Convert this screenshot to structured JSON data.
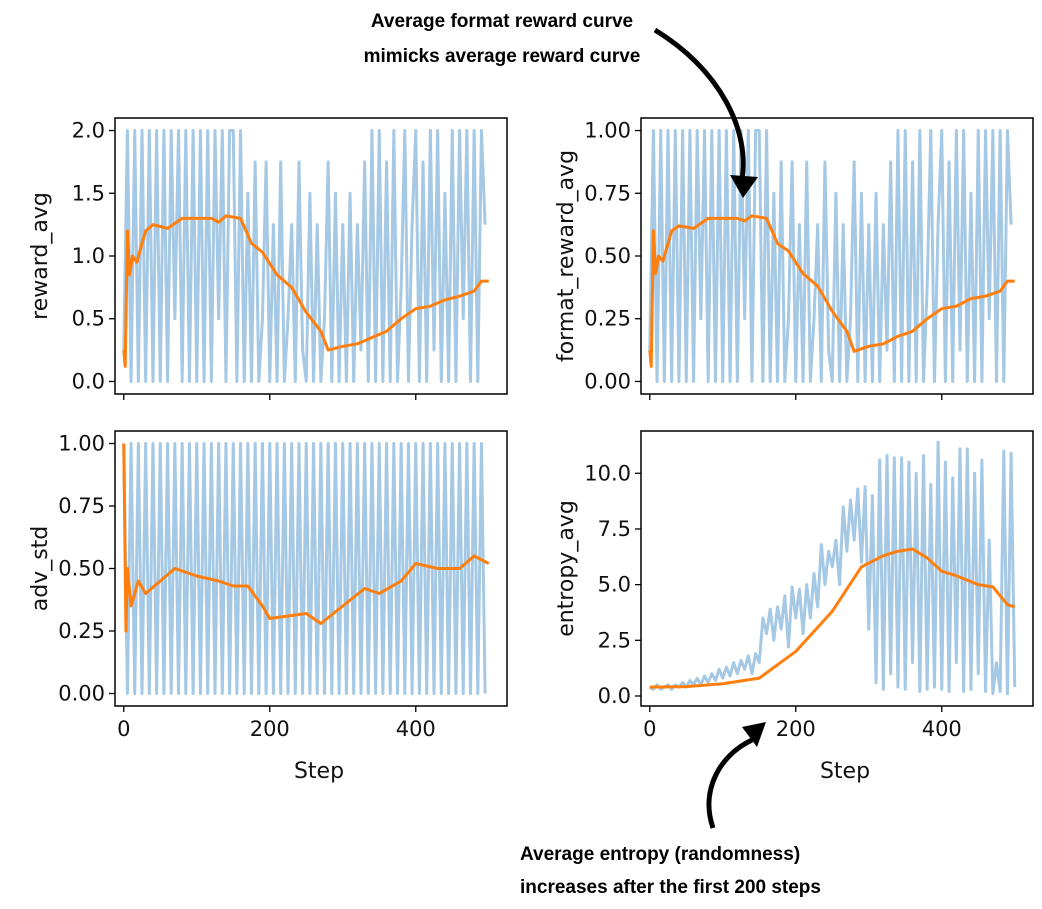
{
  "colors": {
    "raw": "#7fb1d8",
    "smoothed": "#ff7f0e",
    "arrow": "#000000"
  },
  "annotations": {
    "top": [
      "Average format reward curve",
      "mimicks average reward curve"
    ],
    "bottom": [
      "Average entropy (randomness)",
      "increases after the first 200 steps"
    ]
  },
  "chart_data": [
    {
      "type": "line",
      "position": "top-left",
      "xlabel": "",
      "ylabel": "reward_avg",
      "xlim": [
        -12,
        525
      ],
      "ylim": [
        -0.1,
        2.1
      ],
      "xticks": [
        0,
        200,
        400
      ],
      "show_xticklabels": false,
      "yticks": [
        "0.0",
        "0.5",
        "1.0",
        "1.5",
        "2.0"
      ],
      "grid": false,
      "raw_step": 5,
      "raw": [
        0.25,
        2,
        0,
        2,
        0,
        2,
        0,
        2,
        0,
        2,
        0,
        2,
        0,
        2,
        0.5,
        2,
        0,
        2,
        0,
        2,
        0,
        2,
        0,
        2,
        0,
        2,
        0.5,
        2,
        0,
        2,
        2,
        0,
        2,
        0,
        1.5,
        0,
        1.75,
        0,
        0.5,
        1.75,
        0,
        1.25,
        0,
        1.75,
        0,
        0.5,
        1.25,
        0,
        1.75,
        0.25,
        0,
        1.5,
        0,
        1.25,
        0,
        0.5,
        1.75,
        0,
        1.5,
        0,
        1.25,
        0,
        1.5,
        0,
        1.25,
        0.25,
        1.75,
        0,
        2,
        0,
        2,
        0,
        1.75,
        0,
        2,
        0,
        0.75,
        2,
        0,
        1.25,
        2,
        0,
        1.75,
        0,
        2,
        0.25,
        2,
        0,
        1.5,
        0,
        2,
        0,
        2,
        0.5,
        2,
        0,
        2,
        0,
        2,
        1.25
      ],
      "smoothed": [
        [
          0,
          0.25
        ],
        [
          2,
          0.12
        ],
        [
          5,
          1.2
        ],
        [
          8,
          0.85
        ],
        [
          12,
          1.0
        ],
        [
          18,
          0.95
        ],
        [
          25,
          1.1
        ],
        [
          30,
          1.2
        ],
        [
          40,
          1.25
        ],
        [
          60,
          1.22
        ],
        [
          80,
          1.3
        ],
        [
          120,
          1.3
        ],
        [
          130,
          1.27
        ],
        [
          140,
          1.32
        ],
        [
          160,
          1.3
        ],
        [
          175,
          1.1
        ],
        [
          190,
          1.03
        ],
        [
          210,
          0.85
        ],
        [
          230,
          0.75
        ],
        [
          250,
          0.55
        ],
        [
          270,
          0.4
        ],
        [
          280,
          0.25
        ],
        [
          300,
          0.28
        ],
        [
          320,
          0.3
        ],
        [
          340,
          0.35
        ],
        [
          360,
          0.4
        ],
        [
          380,
          0.5
        ],
        [
          400,
          0.58
        ],
        [
          420,
          0.6
        ],
        [
          440,
          0.65
        ],
        [
          460,
          0.68
        ],
        [
          480,
          0.72
        ],
        [
          490,
          0.8
        ],
        [
          500,
          0.8
        ]
      ]
    },
    {
      "type": "line",
      "position": "top-right",
      "xlabel": "",
      "ylabel": "format_reward_avg",
      "xlim": [
        -12,
        525
      ],
      "ylim": [
        -0.05,
        1.05
      ],
      "xticks": [
        0,
        200,
        400
      ],
      "show_xticklabels": false,
      "yticks": [
        "0.00",
        "0.25",
        "0.50",
        "0.75",
        "1.00"
      ],
      "grid": false,
      "raw_step": 5,
      "raw": [
        0.125,
        1,
        0,
        1,
        0,
        1,
        0,
        1,
        0,
        1,
        0,
        1,
        0,
        1,
        0.25,
        1,
        0,
        1,
        0,
        1,
        0,
        1,
        0,
        1,
        0,
        1,
        0.25,
        1,
        0,
        1,
        1,
        0,
        1,
        0,
        0.75,
        0,
        0.875,
        0,
        0.25,
        0.875,
        0,
        0.625,
        0,
        0.875,
        0,
        0.25,
        0.625,
        0,
        0.875,
        0.125,
        0,
        0.75,
        0,
        0.625,
        0,
        0.25,
        0.875,
        0,
        0.75,
        0,
        0.625,
        0,
        0.75,
        0,
        0.625,
        0.125,
        0.875,
        0,
        1,
        0,
        1,
        0,
        0.875,
        0,
        1,
        0,
        0.375,
        1,
        0,
        0.625,
        1,
        0,
        0.875,
        0,
        1,
        0.125,
        1,
        0,
        0.75,
        0,
        1,
        0,
        1,
        0.25,
        1,
        0,
        1,
        0,
        1,
        0.625
      ],
      "smoothed": [
        [
          0,
          0.125
        ],
        [
          2,
          0.06
        ],
        [
          5,
          0.6
        ],
        [
          8,
          0.43
        ],
        [
          12,
          0.5
        ],
        [
          18,
          0.48
        ],
        [
          25,
          0.55
        ],
        [
          30,
          0.6
        ],
        [
          40,
          0.62
        ],
        [
          60,
          0.61
        ],
        [
          80,
          0.65
        ],
        [
          120,
          0.65
        ],
        [
          130,
          0.64
        ],
        [
          140,
          0.66
        ],
        [
          160,
          0.65
        ],
        [
          175,
          0.55
        ],
        [
          190,
          0.52
        ],
        [
          210,
          0.43
        ],
        [
          230,
          0.38
        ],
        [
          250,
          0.28
        ],
        [
          270,
          0.2
        ],
        [
          280,
          0.12
        ],
        [
          300,
          0.14
        ],
        [
          320,
          0.15
        ],
        [
          340,
          0.18
        ],
        [
          360,
          0.2
        ],
        [
          380,
          0.25
        ],
        [
          400,
          0.29
        ],
        [
          420,
          0.3
        ],
        [
          440,
          0.33
        ],
        [
          460,
          0.34
        ],
        [
          480,
          0.36
        ],
        [
          490,
          0.4
        ],
        [
          500,
          0.4
        ]
      ]
    },
    {
      "type": "line",
      "position": "bottom-left",
      "xlabel": "Step",
      "ylabel": "adv_std",
      "xlim": [
        -12,
        525
      ],
      "ylim": [
        -0.05,
        1.05
      ],
      "xticks": [
        0,
        200,
        400
      ],
      "show_xticklabels": true,
      "yticks": [
        "0.00",
        "0.25",
        "0.50",
        "0.75",
        "1.00"
      ],
      "grid": false,
      "raw_step": 5,
      "raw": [
        1,
        0,
        1,
        0,
        1,
        0,
        1,
        0,
        1,
        0,
        1,
        0,
        1,
        0,
        1,
        0,
        1,
        0,
        1,
        0,
        1,
        0,
        1,
        0,
        1,
        0,
        1,
        0,
        1,
        0,
        1,
        0,
        1,
        0,
        1,
        0,
        1,
        0,
        1,
        0,
        1,
        0,
        1,
        0,
        1,
        0,
        1,
        0,
        1,
        0,
        1,
        0,
        1,
        0,
        1,
        0,
        1,
        0,
        1,
        0,
        1,
        0,
        1,
        0,
        1,
        0,
        1,
        0,
        1,
        0,
        1,
        0,
        1,
        0,
        1,
        0,
        1,
        0,
        1,
        0,
        1,
        0,
        1,
        0,
        1,
        0,
        1,
        0,
        1,
        0,
        1,
        0,
        1,
        0,
        1,
        0,
        1,
        0,
        1,
        0
      ],
      "smoothed": [
        [
          0,
          1.0
        ],
        [
          3,
          0.25
        ],
        [
          5,
          0.5
        ],
        [
          10,
          0.35
        ],
        [
          20,
          0.45
        ],
        [
          30,
          0.4
        ],
        [
          50,
          0.45
        ],
        [
          70,
          0.5
        ],
        [
          100,
          0.47
        ],
        [
          130,
          0.45
        ],
        [
          150,
          0.43
        ],
        [
          170,
          0.43
        ],
        [
          190,
          0.35
        ],
        [
          200,
          0.3
        ],
        [
          250,
          0.32
        ],
        [
          270,
          0.28
        ],
        [
          300,
          0.35
        ],
        [
          330,
          0.42
        ],
        [
          350,
          0.4
        ],
        [
          380,
          0.45
        ],
        [
          400,
          0.52
        ],
        [
          430,
          0.5
        ],
        [
          460,
          0.5
        ],
        [
          480,
          0.55
        ],
        [
          500,
          0.52
        ]
      ]
    },
    {
      "type": "line",
      "position": "bottom-right",
      "xlabel": "Step",
      "ylabel": "entropy_avg",
      "xlim": [
        -12,
        525
      ],
      "ylim": [
        -0.45,
        11.9
      ],
      "xticks": [
        0,
        200,
        400
      ],
      "show_xticklabels": true,
      "yticks": [
        "0.0",
        "2.5",
        "5.0",
        "7.5",
        "10.0"
      ],
      "grid": false,
      "raw_step": 5,
      "raw": [
        0.4,
        0.3,
        0.5,
        0.3,
        0.4,
        0.5,
        0.3,
        0.5,
        0.4,
        0.6,
        0.4,
        0.7,
        0.5,
        0.8,
        0.5,
        0.9,
        0.6,
        1.0,
        0.7,
        1.2,
        0.8,
        1.3,
        0.9,
        1.5,
        1.0,
        1.6,
        1.2,
        1.8,
        1.0,
        1.9,
        1.5,
        3.5,
        2.8,
        3.9,
        2.5,
        4.0,
        3.0,
        4.5,
        2.2,
        4.9,
        3.5,
        4.8,
        2.8,
        5.0,
        3.5,
        5.5,
        4.0,
        6.8,
        5.0,
        6.5,
        5.8,
        7.0,
        5.0,
        8.5,
        6.5,
        8.8,
        7.0,
        9.3,
        6.0,
        9.4,
        3.0,
        9.0,
        0.6,
        10.6,
        0.3,
        10.8,
        1.0,
        10.7,
        0.4,
        10.7,
        0.3,
        10.5,
        1.5,
        10.0,
        0.2,
        10.8,
        0.3,
        9.5,
        0.4,
        11.4,
        0.3,
        10.5,
        0.2,
        9.8,
        1.5,
        11.1,
        0.2,
        11.1,
        0.3,
        10.0,
        1.0,
        10.6,
        0.2,
        7.0,
        0.1,
        1.5,
        0.2,
        11.0,
        0.1,
        10.9,
        0.4
      ],
      "smoothed": [
        [
          0,
          0.4
        ],
        [
          50,
          0.42
        ],
        [
          100,
          0.55
        ],
        [
          150,
          0.8
        ],
        [
          200,
          2.0
        ],
        [
          250,
          3.8
        ],
        [
          290,
          5.8
        ],
        [
          320,
          6.3
        ],
        [
          340,
          6.5
        ],
        [
          360,
          6.6
        ],
        [
          380,
          6.2
        ],
        [
          400,
          5.6
        ],
        [
          420,
          5.4
        ],
        [
          450,
          5.0
        ],
        [
          470,
          4.9
        ],
        [
          490,
          4.1
        ],
        [
          500,
          4.0
        ]
      ]
    }
  ]
}
